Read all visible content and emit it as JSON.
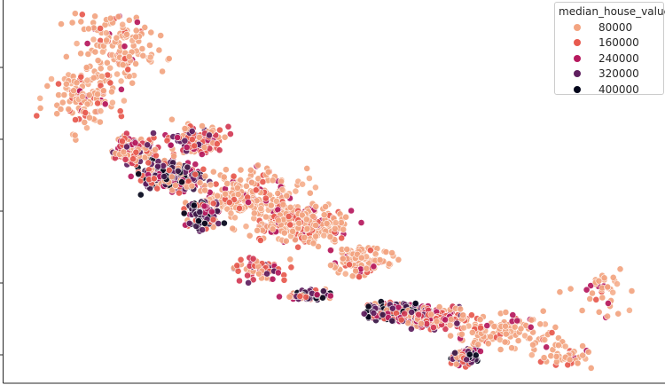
{
  "chart_data": {
    "type": "scatter",
    "title": "",
    "xlabel": "",
    "ylabel": "",
    "xlim": [
      -124.6,
      -114.0
    ],
    "ylim": [
      32.2,
      42.2
    ],
    "hue": "median_house_value",
    "legend": {
      "title": "median_house_value",
      "placement": "top-right",
      "entries": [
        {
          "label": "80000",
          "color": "#f3a481"
        },
        {
          "label": "160000",
          "color": "#e85a4f"
        },
        {
          "label": "240000",
          "color": "#b6195e"
        },
        {
          "label": "320000",
          "color": "#5f1f5f"
        },
        {
          "label": "400000",
          "color": "#03051a"
        }
      ]
    },
    "grid": false,
    "spines": [
      "left",
      "bottom"
    ],
    "note": "Point cloud resembling the geographic distribution of California housing; high-value points concentrate along the coast (Bay Area, Los Angeles, San Diego)."
  }
}
